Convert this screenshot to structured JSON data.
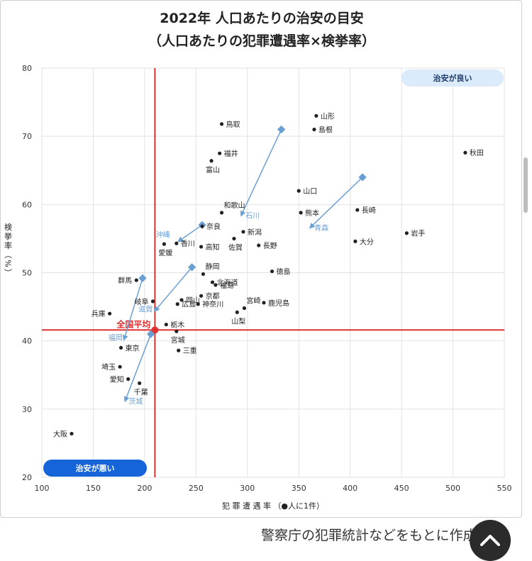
{
  "footer_note": "警察庁の犯罪統計などをもとに作成",
  "icons": {
    "scroll_top": "chevron-up-icon"
  },
  "chart_data": {
    "type": "scatter",
    "title": "2022年 人口あたりの治安の目安",
    "subtitle": "（人口あたりの犯罪遭遇率×検挙率）",
    "xlabel": "犯 罪 遭 遇 率 （●人に1件）",
    "ylabel": "検挙率（%）",
    "xlim": [
      100,
      550
    ],
    "ylim": [
      20,
      80
    ],
    "xticks": [
      100,
      150,
      200,
      250,
      300,
      350,
      400,
      450,
      500,
      550
    ],
    "yticks": [
      20,
      30,
      40,
      50,
      60,
      70,
      80
    ],
    "grid": true,
    "national_average": {
      "label": "全国平均",
      "x": 210,
      "y": 41.6,
      "color": "#e03030"
    },
    "quadrant_labels": {
      "good": "治安が良い",
      "bad": "治安が悪い"
    },
    "colors": {
      "points": "#222222",
      "arrows": "#6a9fd4",
      "average_lines": "#e03030",
      "bad_badge": "#1565d8",
      "good_badge": "#dcebfb"
    },
    "points": [
      {
        "name": "山形",
        "x": 367,
        "y": 73.0
      },
      {
        "name": "島根",
        "x": 365,
        "y": 71.0
      },
      {
        "name": "鳥取",
        "x": 275,
        "y": 71.8
      },
      {
        "name": "福井",
        "x": 273,
        "y": 67.5
      },
      {
        "name": "富山",
        "x": 265,
        "y": 66.4
      },
      {
        "name": "秋田",
        "x": 512,
        "y": 67.6
      },
      {
        "name": "山口",
        "x": 350,
        "y": 62.0
      },
      {
        "name": "和歌山",
        "x": 275,
        "y": 58.8
      },
      {
        "name": "熊本",
        "x": 352,
        "y": 58.8
      },
      {
        "name": "長崎",
        "x": 407,
        "y": 59.2
      },
      {
        "name": "奈良",
        "x": 256,
        "y": 56.8
      },
      {
        "name": "新潟",
        "x": 296,
        "y": 56.0
      },
      {
        "name": "岩手",
        "x": 455,
        "y": 55.8
      },
      {
        "name": "大分",
        "x": 405,
        "y": 54.6
      },
      {
        "name": "佐賀",
        "x": 287,
        "y": 55.0
      },
      {
        "name": "愛媛",
        "x": 219,
        "y": 54.2
      },
      {
        "name": "香川",
        "x": 231,
        "y": 54.3
      },
      {
        "name": "高知",
        "x": 255,
        "y": 53.8
      },
      {
        "name": "長野",
        "x": 311,
        "y": 54.0
      },
      {
        "name": "静岡",
        "x": 257,
        "y": 49.8
      },
      {
        "name": "徳島",
        "x": 324,
        "y": 50.2
      },
      {
        "name": "北海道",
        "x": 266,
        "y": 48.6
      },
      {
        "name": "福島",
        "x": 269,
        "y": 48.2
      },
      {
        "name": "群馬",
        "x": 192,
        "y": 48.9
      },
      {
        "name": "京都",
        "x": 255,
        "y": 46.6
      },
      {
        "name": "岐阜",
        "x": 208,
        "y": 45.8
      },
      {
        "name": "神奈川",
        "x": 252,
        "y": 45.4
      },
      {
        "name": "鹿児島",
        "x": 316,
        "y": 45.6
      },
      {
        "name": "広島",
        "x": 232,
        "y": 45.4
      },
      {
        "name": "岡山",
        "x": 236,
        "y": 46.0
      },
      {
        "name": "宮崎",
        "x": 297,
        "y": 44.8
      },
      {
        "name": "兵庫",
        "x": 166,
        "y": 44.0
      },
      {
        "name": "山梨",
        "x": 290,
        "y": 44.2
      },
      {
        "name": "栃木",
        "x": 221,
        "y": 42.4
      },
      {
        "name": "宮城",
        "x": 231,
        "y": 41.4
      },
      {
        "name": "東京",
        "x": 177,
        "y": 39.0
      },
      {
        "name": "三重",
        "x": 233,
        "y": 38.6
      },
      {
        "name": "埼玉",
        "x": 176,
        "y": 36.2
      },
      {
        "name": "愛知",
        "x": 184,
        "y": 34.4
      },
      {
        "name": "千葉",
        "x": 195,
        "y": 33.8
      },
      {
        "name": "大阪",
        "x": 129,
        "y": 26.4
      }
    ],
    "moved": [
      {
        "name": "石川",
        "from": [
          333,
          71.0
        ],
        "to": [
          294,
          58.4
        ]
      },
      {
        "name": "青森",
        "from": [
          412,
          64.0
        ],
        "to": [
          361,
          56.6
        ]
      },
      {
        "name": "沖縄",
        "from": [
          256,
          57.0
        ],
        "to": [
          233,
          54.6
        ]
      },
      {
        "name": "滋賀",
        "from": [
          246,
          50.8
        ],
        "to": [
          210,
          44.4
        ]
      },
      {
        "name": "福岡",
        "from": [
          198,
          49.2
        ],
        "to": [
          180,
          40.2
        ]
      },
      {
        "name": "茨城",
        "from": [
          206,
          41.0
        ],
        "to": [
          181,
          31.2
        ]
      }
    ]
  }
}
